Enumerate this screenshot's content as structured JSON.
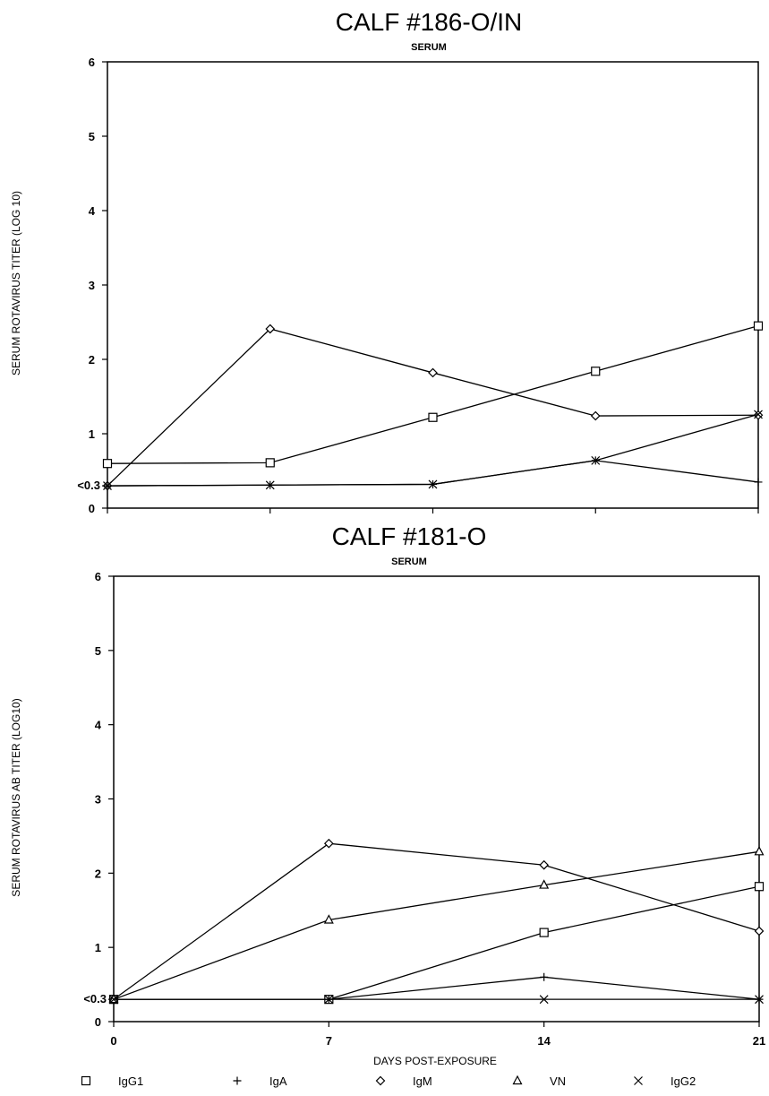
{
  "chart_data": [
    {
      "type": "line",
      "title": "CALF #186-O/IN",
      "subtitle": "SERUM",
      "ylabel": "SERUM ROTAVIRUS TITER (LOG 10)",
      "xlabel": "",
      "ylim": [
        0,
        6
      ],
      "xlim": [
        0,
        21
      ],
      "y_ticks": [
        "0",
        "1",
        "2",
        "3",
        "4",
        "5",
        "6"
      ],
      "y_floor_label": "<0.3",
      "x_tick_labels": [],
      "x": [
        0,
        5.25,
        10.5,
        15.75,
        21
      ],
      "series": [
        {
          "name": "IgG1",
          "values": [
            0.6,
            0.61,
            1.22,
            1.84,
            2.45
          ]
        },
        {
          "name": "IgM",
          "values": [
            0.3,
            2.41,
            1.82,
            1.24,
            1.25
          ]
        },
        {
          "name": "IgA",
          "values": [
            0.3,
            0.31,
            0.32,
            0.64,
            0.35
          ]
        },
        {
          "name": "IgG2",
          "values": [
            0.3,
            0.31,
            0.32,
            0.64,
            1.26
          ]
        }
      ]
    },
    {
      "type": "line",
      "title": "CALF #181-O",
      "subtitle": "SERUM",
      "ylabel": "SERUM ROTAVIRUS AB TITER (LOG10)",
      "xlabel": "DAYS POST-EXPOSURE",
      "ylim": [
        0,
        6
      ],
      "xlim": [
        0,
        21
      ],
      "y_ticks": [
        "0",
        "1",
        "2",
        "3",
        "4",
        "5",
        "6"
      ],
      "y_floor_label": "<0.3",
      "x_tick_labels": [
        "0",
        "7",
        "14",
        "21"
      ],
      "x": [
        0,
        7,
        14,
        21
      ],
      "series": [
        {
          "name": "IgG1",
          "values": [
            0.3,
            0.3,
            1.2,
            1.82
          ]
        },
        {
          "name": "IgA",
          "values": [
            0.3,
            0.3,
            0.6,
            0.3
          ]
        },
        {
          "name": "IgM",
          "values": [
            0.3,
            2.4,
            2.11,
            1.22
          ]
        },
        {
          "name": "VN",
          "values": [
            0.3,
            1.37,
            1.84,
            2.29
          ]
        },
        {
          "name": "IgG2",
          "values": [
            0.3,
            0.3,
            0.3,
            0.3
          ]
        }
      ]
    }
  ],
  "legend": [
    {
      "name": "IgG1",
      "marker": "square"
    },
    {
      "name": "IgA",
      "marker": "plus"
    },
    {
      "name": "IgM",
      "marker": "diamond"
    },
    {
      "name": "VN",
      "marker": "triangle"
    },
    {
      "name": "IgG2",
      "marker": "cross"
    }
  ],
  "marker_glyphs": {
    "square": "□",
    "plus": "+",
    "diamond": "◇",
    "triangle": "Δ",
    "cross": "×"
  }
}
